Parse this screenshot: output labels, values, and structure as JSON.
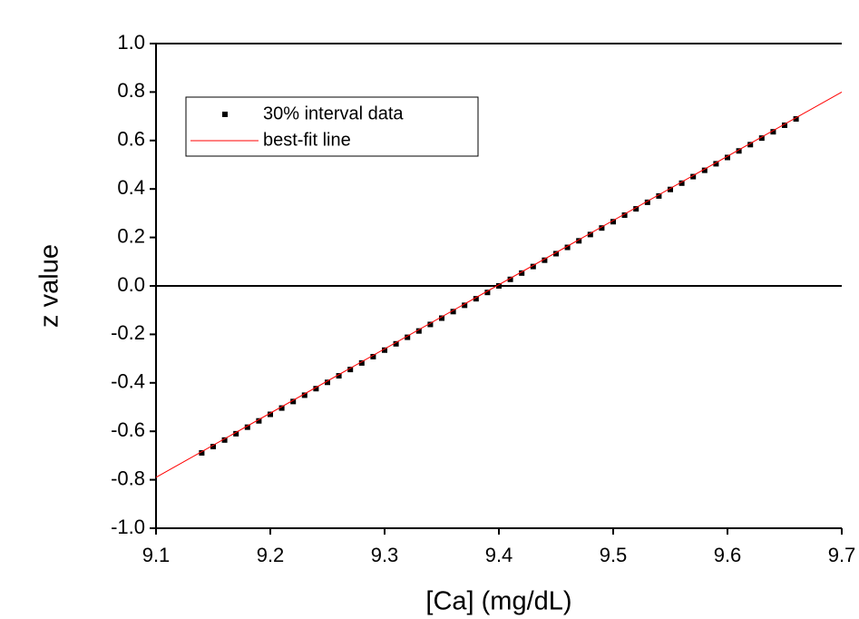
{
  "chart_data": {
    "type": "scatter",
    "x_label": "[Ca] (mg/dL)",
    "y_label": "z value",
    "xlim": [
      9.1,
      9.7
    ],
    "ylim": [
      -1,
      1
    ],
    "xticks": [
      9.1,
      9.2,
      9.3,
      9.4,
      9.5,
      9.6,
      9.7
    ],
    "yticks": [
      {
        "value": -1,
        "label": "-1.0"
      },
      -0.8,
      -0.6,
      -0.4,
      -0.2,
      {
        "value": 0,
        "label": "0.0"
      },
      0.2,
      0.4,
      0.6,
      0.8,
      {
        "value": 1,
        "label": "1.0"
      }
    ],
    "zero_line": true,
    "legend": "upper left",
    "series": [
      {
        "name": "30% interval data",
        "color": "#000000",
        "type": "scatter",
        "x": [
          9.14,
          9.15,
          9.16,
          9.17,
          9.18,
          9.19,
          9.2,
          9.21,
          9.22,
          9.23,
          9.24,
          9.25,
          9.26,
          9.27,
          9.28,
          9.29,
          9.3,
          9.31,
          9.32,
          9.33,
          9.34,
          9.35,
          9.36,
          9.37,
          9.38,
          9.39,
          9.4,
          9.41,
          9.42,
          9.43,
          9.44,
          9.45,
          9.46,
          9.47,
          9.48,
          9.49,
          9.5,
          9.51,
          9.52,
          9.53,
          9.54,
          9.55,
          9.56,
          9.57,
          9.58,
          9.59,
          9.6,
          9.61,
          9.62,
          9.63,
          9.64,
          9.65,
          9.66
        ],
        "values": [
          -0.689,
          -0.663,
          -0.636,
          -0.61,
          -0.583,
          -0.557,
          -0.53,
          -0.504,
          -0.477,
          -0.451,
          -0.424,
          -0.398,
          -0.371,
          -0.345,
          -0.318,
          -0.292,
          -0.265,
          -0.239,
          -0.212,
          -0.186,
          -0.159,
          -0.133,
          -0.106,
          -0.08,
          -0.053,
          -0.027,
          0,
          0.027,
          0.053,
          0.08,
          0.106,
          0.133,
          0.159,
          0.186,
          0.212,
          0.239,
          0.265,
          0.292,
          0.318,
          0.345,
          0.371,
          0.398,
          0.424,
          0.451,
          0.477,
          0.504,
          0.53,
          0.557,
          0.583,
          0.61,
          0.636,
          0.663,
          0.689
        ]
      },
      {
        "name": "best-fit line",
        "color": "#ff0000",
        "type": "line",
        "x": [
          9.1,
          9.7
        ],
        "values": [
          -0.79,
          0.8
        ]
      }
    ]
  }
}
